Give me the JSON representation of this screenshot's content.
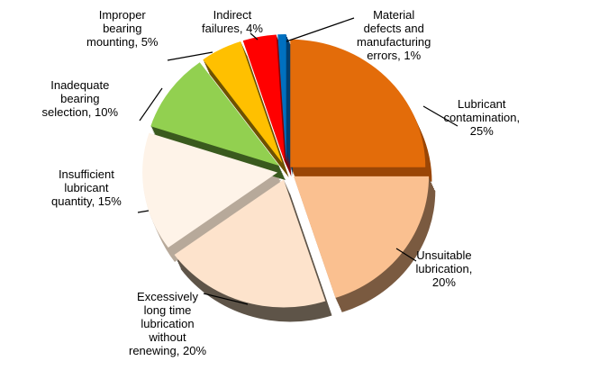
{
  "chart_data": {
    "type": "pie",
    "style": "3d-exploded",
    "unit": "%",
    "slices": [
      {
        "label_lines": [
          "Lubricant",
          "contamination,",
          "25%"
        ],
        "value": 25,
        "color": "#E36C0A",
        "side_color": "#9A4606"
      },
      {
        "label_lines": [
          "Unsuitable",
          "lubrication,",
          "20%"
        ],
        "value": 20,
        "color": "#FAC090",
        "side_color": "#7A5A40"
      },
      {
        "label_lines": [
          "Excessively",
          "long time",
          "lubrication",
          "without",
          "renewing, 20%"
        ],
        "value": 20,
        "color": "#FDE3CC",
        "side_color": "#5E5448"
      },
      {
        "label_lines": [
          "Insufficient",
          "lubricant",
          "quantity, 15%"
        ],
        "value": 15,
        "color": "#FEF3E8",
        "side_color": "#B7A99A"
      },
      {
        "label_lines": [
          "Inadequate",
          "bearing",
          "selection, 10%"
        ],
        "value": 10,
        "color": "#92D050",
        "side_color": "#3A5A1E"
      },
      {
        "label_lines": [
          "Improper",
          "bearing",
          "mounting, 5%"
        ],
        "value": 5,
        "color": "#FFC000",
        "side_color": "#6E5200"
      },
      {
        "label_lines": [
          "Indirect",
          "failures, 4%"
        ],
        "value": 4,
        "color": "#FF0000",
        "side_color": "#8A0000"
      },
      {
        "label_lines": [
          "Material",
          "defects and",
          "manufacturing",
          "errors, 1%"
        ],
        "value": 1,
        "color": "#0070C0",
        "side_color": "#003E70"
      }
    ]
  }
}
